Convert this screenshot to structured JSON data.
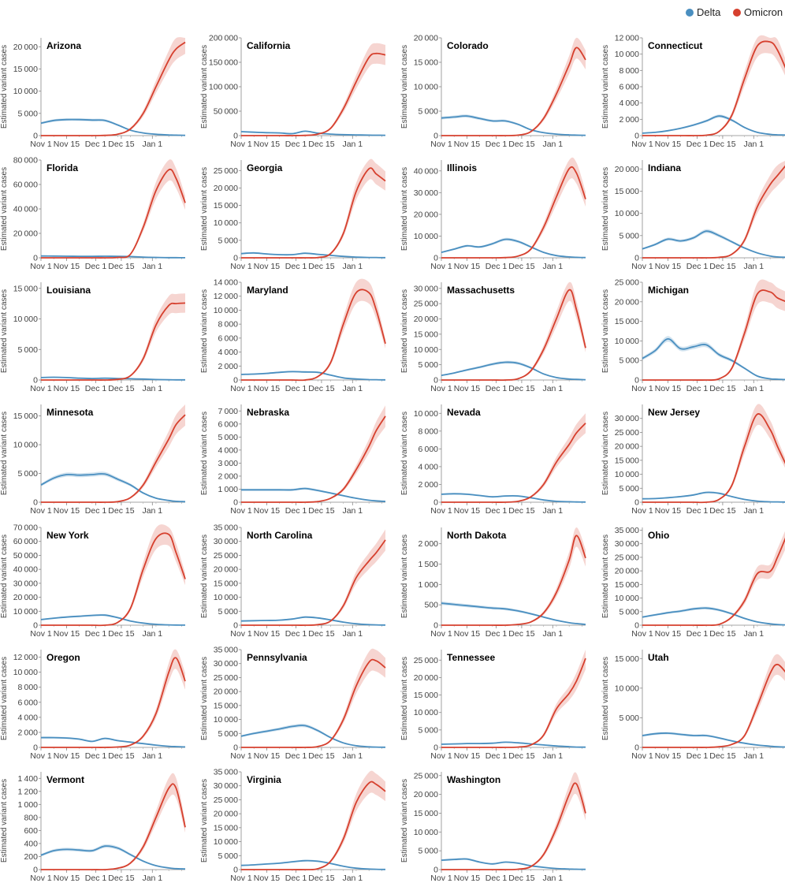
{
  "legend": {
    "entries": [
      {
        "label": "Delta",
        "color": "#4a8fc0"
      },
      {
        "label": "Omicron",
        "color": "#d6402e"
      }
    ]
  },
  "chart_data": {
    "type": "line",
    "ylabel": "Estimated variant cases",
    "x_ticks": [
      {
        "day": 0,
        "label": "Nov 1"
      },
      {
        "day": 14,
        "label": "Nov 15"
      },
      {
        "day": 30,
        "label": "Dec 1"
      },
      {
        "day": 44,
        "label": "Dec 15"
      },
      {
        "day": 61,
        "label": "Jan 1"
      }
    ],
    "x_range": [
      0,
      79
    ],
    "sample_days": [
      0,
      7,
      14,
      21,
      28,
      35,
      42,
      49,
      56,
      63,
      70,
      74,
      79
    ],
    "panels": [
      {
        "title": "Arizona",
        "ymax": 22000,
        "yticks": [
          0,
          5000,
          10000,
          15000,
          20000
        ],
        "delta": [
          2800,
          3400,
          3600,
          3600,
          3500,
          3400,
          2400,
          1200,
          600,
          300,
          150,
          100,
          60
        ],
        "omicron": [
          0,
          0,
          0,
          0,
          0,
          50,
          300,
          1500,
          5000,
          11000,
          17000,
          19500,
          21000
        ]
      },
      {
        "title": "California",
        "ymax": 200000,
        "yticks": [
          0,
          50000,
          100000,
          150000,
          200000
        ],
        "delta": [
          8000,
          7000,
          6000,
          5500,
          4000,
          9000,
          5000,
          3000,
          2000,
          1500,
          1000,
          800,
          600
        ],
        "omicron": [
          0,
          0,
          0,
          0,
          0,
          500,
          3000,
          15000,
          55000,
          110000,
          160000,
          168000,
          165000
        ]
      },
      {
        "title": "Colorado",
        "ymax": 20000,
        "yticks": [
          0,
          5000,
          10000,
          15000,
          20000
        ],
        "delta": [
          3600,
          3800,
          4000,
          3500,
          3000,
          3000,
          2300,
          1200,
          600,
          300,
          150,
          100,
          60
        ],
        "omicron": [
          0,
          0,
          0,
          0,
          0,
          0,
          100,
          800,
          3500,
          8500,
          14500,
          18000,
          15500
        ]
      },
      {
        "title": "Connecticut",
        "ymax": 12000,
        "yticks": [
          0,
          2000,
          4000,
          6000,
          8000,
          10000,
          12000
        ],
        "delta": [
          300,
          400,
          600,
          900,
          1300,
          1800,
          2400,
          1900,
          1000,
          400,
          150,
          100,
          60
        ],
        "omicron": [
          0,
          0,
          0,
          0,
          0,
          50,
          500,
          2500,
          7000,
          11000,
          11500,
          10500,
          8000
        ]
      },
      {
        "title": "Florida",
        "ymax": 80000,
        "yticks": [
          0,
          20000,
          40000,
          60000,
          80000
        ],
        "delta": [
          1500,
          1400,
          1300,
          1200,
          1200,
          1300,
          1200,
          1000,
          600,
          300,
          150,
          100,
          60
        ],
        "omicron": [
          0,
          0,
          0,
          0,
          0,
          0,
          300,
          3000,
          25000,
          55000,
          72000,
          65000,
          45000
        ]
      },
      {
        "title": "Georgia",
        "ymax": 28000,
        "yticks": [
          0,
          5000,
          10000,
          15000,
          20000,
          25000
        ],
        "delta": [
          1200,
          1400,
          1100,
          900,
          900,
          1300,
          1000,
          700,
          400,
          200,
          100,
          80,
          50
        ],
        "omicron": [
          0,
          0,
          0,
          0,
          0,
          0,
          100,
          1200,
          7000,
          19000,
          25500,
          24000,
          22000
        ]
      },
      {
        "title": "Illinois",
        "ymax": 45000,
        "yticks": [
          0,
          10000,
          20000,
          30000,
          40000
        ],
        "delta": [
          2500,
          4000,
          5500,
          5000,
          6500,
          8500,
          7500,
          5000,
          2500,
          1000,
          400,
          200,
          100
        ],
        "omicron": [
          0,
          0,
          0,
          0,
          0,
          100,
          800,
          4000,
          14000,
          28000,
          41000,
          39000,
          27000
        ]
      },
      {
        "title": "Indiana",
        "ymax": 22000,
        "yticks": [
          0,
          5000,
          10000,
          15000,
          20000
        ],
        "delta": [
          2000,
          3000,
          4200,
          3800,
          4500,
          6000,
          5000,
          3600,
          2200,
          1100,
          400,
          200,
          100
        ],
        "omicron": [
          0,
          0,
          0,
          0,
          0,
          0,
          100,
          800,
          4000,
          11500,
          16500,
          18500,
          21000
        ]
      },
      {
        "title": "Louisiana",
        "ymax": 16000,
        "yticks": [
          0,
          5000,
          10000,
          15000
        ],
        "delta": [
          400,
          450,
          400,
          300,
          250,
          300,
          250,
          200,
          150,
          80,
          40,
          30,
          20
        ],
        "omicron": [
          0,
          0,
          0,
          0,
          0,
          0,
          100,
          700,
          3500,
          9000,
          12200,
          12500,
          12600
        ]
      },
      {
        "title": "Maryland",
        "ymax": 14000,
        "yticks": [
          0,
          2000,
          4000,
          6000,
          8000,
          10000,
          12000,
          14000
        ],
        "delta": [
          800,
          850,
          950,
          1100,
          1200,
          1150,
          1100,
          700,
          300,
          150,
          60,
          40,
          20
        ],
        "omicron": [
          0,
          0,
          0,
          0,
          0,
          0,
          500,
          2500,
          8000,
          12500,
          12500,
          10000,
          5200
        ]
      },
      {
        "title": "Massachusetts",
        "ymax": 32000,
        "yticks": [
          0,
          5000,
          10000,
          15000,
          20000,
          25000,
          30000
        ],
        "delta": [
          1500,
          2300,
          3300,
          4200,
          5200,
          5800,
          5500,
          4000,
          2000,
          800,
          300,
          200,
          100
        ],
        "omicron": [
          0,
          0,
          0,
          0,
          0,
          0,
          400,
          3000,
          10000,
          20000,
          29500,
          23000,
          10500
        ]
      },
      {
        "title": "Michigan",
        "ymax": 25000,
        "yticks": [
          0,
          5000,
          10000,
          15000,
          20000,
          25000
        ],
        "delta": [
          5500,
          7500,
          10500,
          8000,
          8500,
          9000,
          6500,
          5000,
          3000,
          1000,
          300,
          200,
          100
        ],
        "omicron": [
          0,
          0,
          0,
          0,
          0,
          0,
          300,
          3000,
          12000,
          22000,
          22500,
          21000,
          20000
        ]
      },
      {
        "title": "Minnesota",
        "ymax": 17000,
        "yticks": [
          0,
          5000,
          10000,
          15000
        ],
        "delta": [
          3000,
          4200,
          4800,
          4700,
          4800,
          4900,
          4000,
          3000,
          1600,
          700,
          300,
          150,
          100
        ],
        "omicron": [
          0,
          0,
          0,
          0,
          0,
          0,
          100,
          800,
          3000,
          7000,
          11000,
          13500,
          15200
        ]
      },
      {
        "title": "Nebraska",
        "ymax": 7500,
        "yticks": [
          0,
          1000,
          2000,
          3000,
          4000,
          5000,
          6000,
          7000
        ],
        "delta": [
          950,
          950,
          950,
          950,
          950,
          1050,
          900,
          700,
          500,
          300,
          150,
          100,
          60
        ],
        "omicron": [
          0,
          0,
          0,
          0,
          0,
          0,
          50,
          300,
          1000,
          2500,
          4300,
          5500,
          6600
        ]
      },
      {
        "title": "Nevada",
        "ymax": 11000,
        "yticks": [
          0,
          2000,
          4000,
          6000,
          8000,
          10000
        ],
        "delta": [
          900,
          950,
          900,
          750,
          600,
          700,
          700,
          500,
          250,
          100,
          50,
          30,
          20
        ],
        "omicron": [
          0,
          0,
          0,
          0,
          0,
          0,
          100,
          600,
          2000,
          4500,
          6500,
          7800,
          8900
        ]
      },
      {
        "title": "New Jersey",
        "ymax": 35000,
        "yticks": [
          0,
          5000,
          10000,
          15000,
          20000,
          25000,
          30000
        ],
        "delta": [
          1200,
          1300,
          1600,
          2000,
          2600,
          3500,
          3200,
          2000,
          1000,
          400,
          150,
          100,
          60
        ],
        "omicron": [
          0,
          0,
          0,
          0,
          0,
          0,
          1000,
          6000,
          20000,
          31500,
          26000,
          20000,
          13000
        ]
      },
      {
        "title": "New York",
        "ymax": 70000,
        "yticks": [
          0,
          10000,
          20000,
          30000,
          40000,
          50000,
          60000,
          70000
        ],
        "delta": [
          4000,
          5000,
          5800,
          6400,
          7000,
          7200,
          5400,
          3000,
          1500,
          600,
          200,
          100,
          60
        ],
        "omicron": [
          0,
          0,
          0,
          0,
          0,
          0,
          2000,
          12000,
          40000,
          62000,
          65000,
          52000,
          33000
        ]
      },
      {
        "title": "North Carolina",
        "ymax": 35000,
        "yticks": [
          0,
          5000,
          10000,
          15000,
          20000,
          25000,
          30000,
          35000
        ],
        "delta": [
          1500,
          1600,
          1700,
          1800,
          2200,
          2900,
          2600,
          1900,
          1100,
          500,
          200,
          100,
          60
        ],
        "omicron": [
          0,
          0,
          0,
          0,
          0,
          0,
          200,
          1500,
          7000,
          17000,
          23000,
          26000,
          30500
        ]
      },
      {
        "title": "North Dakota",
        "ymax": 2400,
        "yticks": [
          0,
          500,
          1000,
          1500,
          2000
        ],
        "delta": [
          540,
          510,
          480,
          450,
          420,
          400,
          350,
          280,
          200,
          120,
          60,
          40,
          20
        ],
        "omicron": [
          0,
          0,
          0,
          0,
          0,
          0,
          20,
          80,
          300,
          800,
          1600,
          2200,
          1650
        ]
      },
      {
        "title": "Ohio",
        "ymax": 36000,
        "yticks": [
          0,
          5000,
          10000,
          15000,
          20000,
          25000,
          30000,
          35000
        ],
        "delta": [
          3000,
          3800,
          4600,
          5200,
          6000,
          6300,
          5600,
          4200,
          2500,
          1200,
          500,
          250,
          100
        ],
        "omicron": [
          0,
          0,
          0,
          0,
          0,
          0,
          300,
          3000,
          9000,
          19000,
          19800,
          25000,
          33000
        ]
      },
      {
        "title": "Oregon",
        "ymax": 13000,
        "yticks": [
          0,
          2000,
          4000,
          6000,
          8000,
          10000,
          12000
        ],
        "delta": [
          1300,
          1300,
          1250,
          1100,
          800,
          1200,
          900,
          700,
          500,
          300,
          150,
          100,
          60
        ],
        "omicron": [
          0,
          0,
          0,
          0,
          0,
          0,
          50,
          300,
          1500,
          4500,
          10000,
          11900,
          8800
        ]
      },
      {
        "title": "Pennsylvania",
        "ymax": 35000,
        "yticks": [
          0,
          5000,
          10000,
          15000,
          20000,
          25000,
          30000,
          35000
        ],
        "delta": [
          4000,
          5000,
          5800,
          6600,
          7500,
          7800,
          6000,
          3500,
          1600,
          600,
          200,
          100,
          60
        ],
        "omicron": [
          0,
          0,
          0,
          0,
          0,
          0,
          300,
          2500,
          10000,
          22000,
          30500,
          31000,
          28500
        ]
      },
      {
        "title": "Tennessee",
        "ymax": 28000,
        "yticks": [
          0,
          5000,
          10000,
          15000,
          20000,
          25000
        ],
        "delta": [
          900,
          1000,
          1100,
          1100,
          1200,
          1500,
          1300,
          1000,
          700,
          400,
          200,
          100,
          60
        ],
        "omicron": [
          0,
          0,
          0,
          0,
          0,
          0,
          100,
          700,
          3500,
          11000,
          15500,
          19000,
          25500
        ]
      },
      {
        "title": "Utah",
        "ymax": 16500,
        "yticks": [
          0,
          5000,
          10000,
          15000
        ],
        "delta": [
          2000,
          2300,
          2400,
          2200,
          2000,
          2000,
          1600,
          1100,
          700,
          400,
          200,
          100,
          60
        ],
        "omicron": [
          0,
          0,
          0,
          0,
          0,
          0,
          100,
          500,
          2000,
          7000,
          12500,
          14000,
          12500
        ]
      },
      {
        "title": "Vermont",
        "ymax": 1500,
        "yticks": [
          0,
          200,
          400,
          600,
          800,
          1000,
          1200,
          1400
        ],
        "delta": [
          220,
          290,
          310,
          300,
          290,
          360,
          330,
          230,
          130,
          60,
          25,
          15,
          10
        ],
        "omicron": [
          0,
          0,
          0,
          0,
          0,
          0,
          20,
          100,
          350,
          800,
          1250,
          1250,
          650
        ]
      },
      {
        "title": "Virginia",
        "ymax": 35000,
        "yticks": [
          0,
          5000,
          10000,
          15000,
          20000,
          25000,
          30000,
          35000
        ],
        "delta": [
          1500,
          1700,
          2000,
          2300,
          2800,
          3200,
          3000,
          2200,
          1200,
          500,
          200,
          100,
          60
        ],
        "omicron": [
          0,
          0,
          0,
          0,
          0,
          0,
          300,
          3000,
          11000,
          24000,
          31000,
          30500,
          28000
        ]
      },
      {
        "title": "Washington",
        "ymax": 26000,
        "yticks": [
          0,
          5000,
          10000,
          15000,
          20000,
          25000
        ],
        "delta": [
          2500,
          2700,
          2800,
          2000,
          1500,
          2000,
          1700,
          1000,
          600,
          300,
          150,
          100,
          60
        ],
        "omicron": [
          0,
          0,
          0,
          0,
          0,
          0,
          100,
          800,
          4000,
          11000,
          20000,
          22800,
          15000
        ]
      }
    ]
  }
}
